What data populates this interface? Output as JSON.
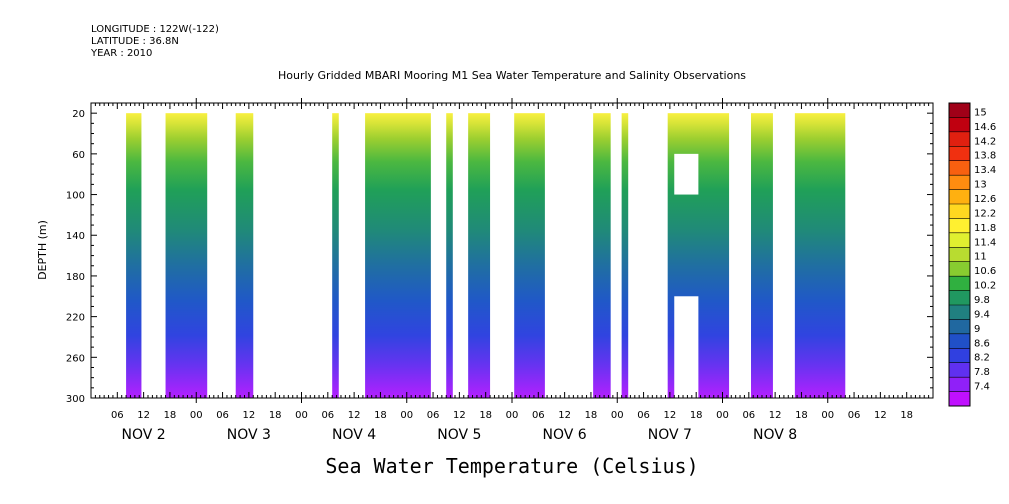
{
  "header": {
    "longitude": "LONGITUDE : 122W(-122)",
    "latitude": "LATITUDE : 36.8N",
    "year": "YEAR : 2010"
  },
  "footer": {
    "title": "Sea Water Temperature (Celsius)"
  },
  "chart_data": {
    "type": "heatmap",
    "title": "Hourly Gridded MBARI Mooring M1 Sea Water Temperature and Salinity Observations",
    "ylabel": "DEPTH (m)",
    "xlabel": "",
    "x_range_hours": [
      0,
      192
    ],
    "y_range_m": [
      10,
      300
    ],
    "y_ticks": [
      20,
      60,
      100,
      140,
      180,
      220,
      260,
      300
    ],
    "hour_tick_labels": [
      "06",
      "12",
      "18",
      "00"
    ],
    "day_labels": [
      "NOV 2",
      "NOV 3",
      "NOV 4",
      "NOV 5",
      "NOV 6",
      "NOV 7",
      "NOV 8"
    ],
    "data_segments_hours": [
      [
        8,
        11.5
      ],
      [
        17,
        26.5
      ],
      [
        33,
        37
      ],
      [
        55,
        56.5
      ],
      [
        62.5,
        77.5
      ],
      [
        81,
        82.5
      ],
      [
        86,
        91
      ],
      [
        96.5,
        103.5
      ],
      [
        114.5,
        118.5
      ],
      [
        121,
        122.5
      ],
      [
        131.5,
        145.5
      ],
      [
        150.5,
        155.5
      ],
      [
        160.5,
        172
      ]
    ],
    "gaps": [
      {
        "hours": [
          133,
          138.5
        ],
        "depth_m": [
          60,
          100
        ]
      },
      {
        "hours": [
          133,
          138.5
        ],
        "depth_m": [
          200,
          300
        ]
      }
    ],
    "colorbar": {
      "levels": [
        "15",
        "14.6",
        "14.2",
        "13.8",
        "13.4",
        "13",
        "12.6",
        "12.2",
        "11.8",
        "11.4",
        "11",
        "10.6",
        "10.2",
        "9.8",
        "9.4",
        "9",
        "8.6",
        "8.2",
        "7.8",
        "7.4"
      ],
      "colors": [
        "#a00018",
        "#c00010",
        "#e02010",
        "#f03010",
        "#f86010",
        "#ff8c10",
        "#ffb010",
        "#ffd820",
        "#fff030",
        "#e0ef30",
        "#b8dc30",
        "#88cc30",
        "#30b040",
        "#209860",
        "#208080",
        "#2068a0",
        "#2050c8",
        "#3040e0",
        "#6030f0",
        "#9020f8",
        "#c010ff"
      ]
    }
  }
}
